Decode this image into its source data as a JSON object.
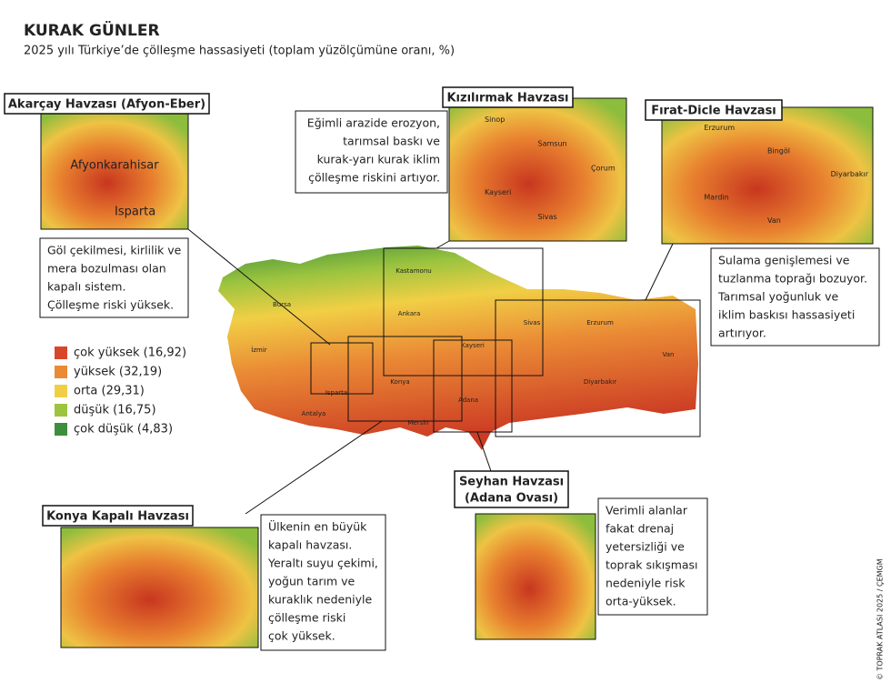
{
  "header": {
    "title": "KURAK GÜNLER",
    "subtitle": "2025 yılı Türkiye’de çölleşme hassasiyeti (toplam yüzölçümüne oranı, %)"
  },
  "legend": [
    {
      "label": "çok yüksek (16,92)",
      "color": "#d9472b"
    },
    {
      "label": "yüksek (32,19)",
      "color": "#ea8a35"
    },
    {
      "label": "orta (29,31)",
      "color": "#f1cf45"
    },
    {
      "label": "düşük (16,75)",
      "color": "#9cc43f"
    },
    {
      "label": "çok düşük (4,83)",
      "color": "#3d8f3c"
    }
  ],
  "panels": [
    {
      "title": [
        "Akarçay Havzası (Afyon-Eber)"
      ],
      "places": [
        "Afyonkarahisar",
        "Isparta"
      ],
      "description": [
        "Göl çekilmesi, kirlilik ve",
        "mera bozulması olan",
        "kapalı sistem.",
        "Çölleşme riski yüksek."
      ]
    },
    {
      "title": [
        "Kızılırmak Havzası"
      ],
      "places": [
        "Sinop",
        "Samsun",
        "Çorum",
        "Kayseri",
        "Sivas"
      ],
      "description": [
        "Eğimli arazide erozyon,",
        "tarımsal baskı ve",
        "kurak-yarı kurak iklim",
        "çölleşme riskini artıyor."
      ]
    },
    {
      "title": [
        "Fırat-Dicle Havzası"
      ],
      "places": [
        "Erzurum",
        "Bingöl",
        "Diyarbakır",
        "Mardin",
        "Van"
      ],
      "description": [
        "Sulama genişlemesi ve",
        "tuzlanma toprağı bozuyor.",
        "Tarımsal yoğunluk ve",
        "iklim baskısı hassasiyeti",
        "artırıyor."
      ]
    },
    {
      "title": [
        "Konya Kapalı Havzası"
      ],
      "places": [],
      "description": [
        "Ülkenin en büyük",
        "kapalı havzası.",
        "Yeraltı suyu çekimi,",
        "yoğun tarım ve",
        "kuraklık nedeniyle",
        "çölleşme riski",
        "çok yüksek."
      ]
    },
    {
      "title": [
        "Seyhan Havzası",
        "(Adana Ovası)"
      ],
      "places": [],
      "description": [
        "Verimli alanlar",
        "fakat drenaj",
        "yetersizliği ve",
        "toprak sıkışması",
        "nedeniyle risk",
        "orta-yüksek."
      ]
    }
  ],
  "map_places": [
    "Kastamonu",
    "Ankara",
    "Konya",
    "Kayseri",
    "Sivas",
    "Erzurum",
    "Van",
    "Diyarbakır",
    "Mersin",
    "Adana",
    "Antalya",
    "İzmir",
    "Bursa",
    "Isparta"
  ],
  "credit": "© TOPRAK ATLASI 2025 / ÇEMGM"
}
